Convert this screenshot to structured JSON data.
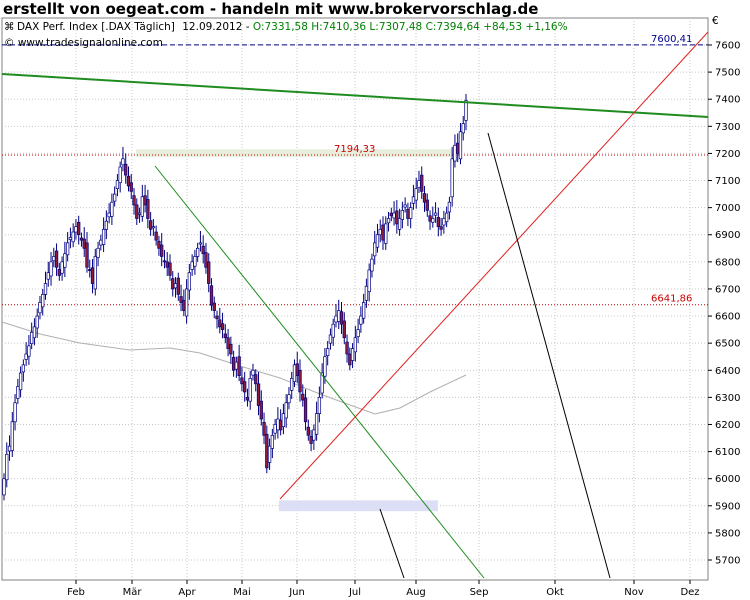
{
  "headline": "erstellt von oegeat.com - handeln mit www.brokervorschlag.de",
  "header": {
    "name": "DAX Perf. Index [.DAX  Täglich]",
    "date": "12.09.2012",
    "sep": " - ",
    "ohlc": "O:7331,58 H:7410,36 L:7307,48 C:7394,64 +84,53 +1,16%",
    "copyright": "© www.tradesignalonline.com",
    "currency": "€"
  },
  "colors": {
    "candle_up": "#ffffff",
    "candle_down": "#8b1c3c",
    "candle_outline": "#000080",
    "green_line": "#1f8c1f",
    "red_line": "#e02020",
    "ma_line": "#b0b0b0",
    "level_blue": "#00008b",
    "level_red": "#cc0000"
  },
  "chart_data": {
    "type": "candlestick",
    "title": "DAX Perf. Index [.DAX  Täglich]",
    "x_labels": [
      "Feb",
      "Mär",
      "Apr",
      "Mai",
      "Jun",
      "Jul",
      "Aug",
      "Sep",
      "Okt",
      "Nov",
      "Dez"
    ],
    "y_ticks": [
      5700,
      5800,
      5900,
      6000,
      6100,
      6200,
      6300,
      6400,
      6500,
      6600,
      6700,
      6800,
      6900,
      7000,
      7100,
      7200,
      7300,
      7400,
      7500,
      7600
    ],
    "ylim": [
      5630,
      7680
    ],
    "grid": true,
    "levels": [
      {
        "value": 7600.41,
        "label": "7600,41",
        "style": "dashed",
        "color": "#00008b"
      },
      {
        "value": 7194.33,
        "label": "7194,33",
        "style": "dotted",
        "color": "#cc0000"
      },
      {
        "value": 6641.86,
        "label": "6641,86",
        "style": "dotted",
        "color": "#cc0000"
      }
    ],
    "series": [
      {
        "name": "DAX Perf. Index",
        "kind": "daily candles",
        "close": [
          6000,
          6090,
          6120,
          6210,
          6280,
          6340,
          6390,
          6420,
          6460,
          6490,
          6540,
          6560,
          6600,
          6650,
          6680,
          6720,
          6760,
          6800,
          6820,
          6780,
          6750,
          6800,
          6830,
          6870,
          6890,
          6910,
          6930,
          6900,
          6880,
          6850,
          6780,
          6770,
          6720,
          6820,
          6850,
          6880,
          6920,
          6950,
          6980,
          7020,
          7050,
          7100,
          7150,
          7180,
          7120,
          7080,
          7060,
          7010,
          6960,
          6980,
          7040,
          7010,
          6960,
          6920,
          6930,
          6880,
          6850,
          6820,
          6800,
          6780,
          6750,
          6700,
          6720,
          6680,
          6650,
          6620,
          6700,
          6760,
          6800,
          6820,
          6850,
          6870,
          6830,
          6780,
          6720,
          6640,
          6620,
          6590,
          6560,
          6550,
          6520,
          6480,
          6460,
          6400,
          6430,
          6380,
          6350,
          6320,
          6290,
          6370,
          6400,
          6350,
          6270,
          6220,
          6160,
          6040,
          6120,
          6160,
          6200,
          6220,
          6180,
          6240,
          6280,
          6310,
          6370,
          6420,
          6380,
          6320,
          6290,
          6210,
          6160,
          6130,
          6180,
          6240,
          6300,
          6390,
          6450,
          6480,
          6530,
          6570,
          6600,
          6620,
          6570,
          6520,
          6460,
          6420,
          6480,
          6520,
          6550,
          6600,
          6650,
          6710,
          6770,
          6810,
          6870,
          6900,
          6920,
          6880,
          6940,
          6960,
          6970,
          6980,
          6940,
          6960,
          6990,
          7010,
          6960,
          7000,
          7040,
          7070,
          7100,
          7060,
          7020,
          6990,
          6950,
          6960,
          6980,
          6930,
          6920,
          6960,
          6980,
          7020,
          7180,
          7230,
          7200,
          7280,
          7310,
          7395
        ]
      },
      {
        "name": "moving average",
        "kind": "line"
      },
      {
        "name": "green trend line",
        "kind": "line",
        "points": [
          [
            "Jan",
            7500
          ],
          [
            "Dez",
            7330
          ]
        ]
      },
      {
        "name": "green downtrend line",
        "kind": "line",
        "points": [
          [
            "Mär",
            7160
          ],
          [
            "Sep",
            5680
          ]
        ]
      },
      {
        "name": "red uptrend line",
        "kind": "line",
        "points": [
          [
            "Mai",
            5920
          ],
          [
            "Dez",
            7660
          ]
        ]
      },
      {
        "name": "black line upper",
        "kind": "line",
        "points": [
          [
            "Sep",
            7280
          ],
          [
            "Okt",
            5680
          ]
        ]
      },
      {
        "name": "black line lower",
        "kind": "line",
        "points": [
          [
            "Jul",
            5880
          ],
          [
            "Aug",
            5680
          ]
        ]
      }
    ],
    "zones": [
      {
        "name": "resistance zone",
        "y": [
          7194,
          7215
        ],
        "x": [
          "Mär",
          "Aug"
        ]
      },
      {
        "name": "support zone",
        "y": [
          5880,
          5920
        ],
        "x": [
          "Mai",
          "Aug"
        ]
      }
    ]
  }
}
